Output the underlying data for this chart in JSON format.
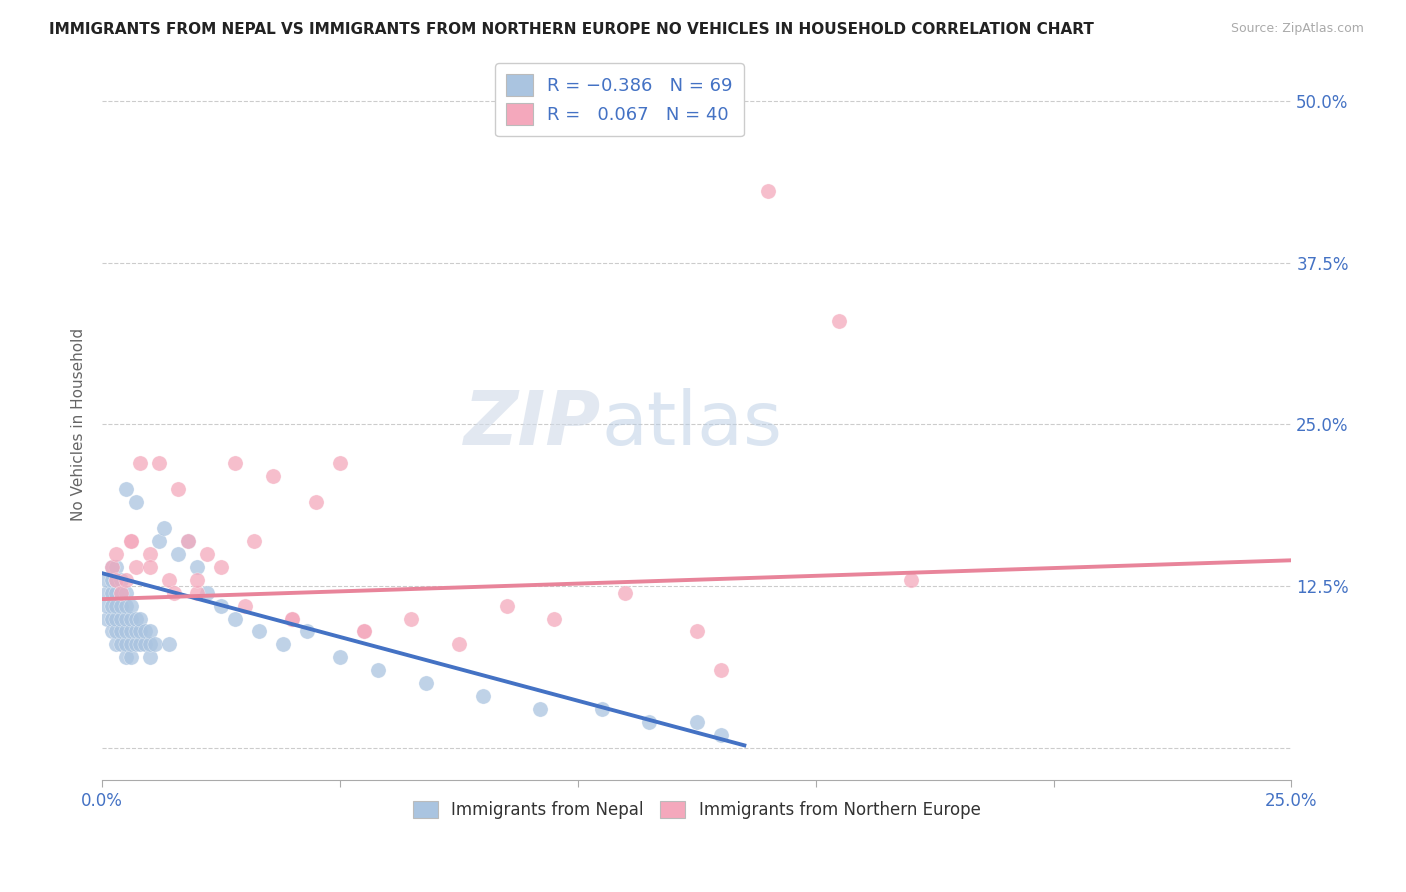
{
  "title": "IMMIGRANTS FROM NEPAL VS IMMIGRANTS FROM NORTHERN EUROPE NO VEHICLES IN HOUSEHOLD CORRELATION CHART",
  "source": "Source: ZipAtlas.com",
  "ylabel": "No Vehicles in Household",
  "xlim": [
    0.0,
    0.25
  ],
  "ylim": [
    -0.025,
    0.525
  ],
  "nepal_R": -0.386,
  "nepal_N": 69,
  "northern_europe_R": 0.067,
  "northern_europe_N": 40,
  "nepal_color": "#aac4e0",
  "northern_color": "#f4a8bc",
  "nepal_line_color": "#4472c4",
  "northern_line_color": "#e8849a",
  "legend_label_1": "Immigrants from Nepal",
  "legend_label_2": "Immigrants from Northern Europe",
  "watermark": "ZIPatlas",
  "nepal_x": [
    0.001,
    0.001,
    0.001,
    0.001,
    0.002,
    0.002,
    0.002,
    0.002,
    0.002,
    0.002,
    0.003,
    0.003,
    0.003,
    0.003,
    0.003,
    0.003,
    0.003,
    0.004,
    0.004,
    0.004,
    0.004,
    0.004,
    0.004,
    0.005,
    0.005,
    0.005,
    0.005,
    0.005,
    0.005,
    0.005,
    0.006,
    0.006,
    0.006,
    0.006,
    0.006,
    0.007,
    0.007,
    0.007,
    0.007,
    0.008,
    0.008,
    0.008,
    0.009,
    0.009,
    0.01,
    0.01,
    0.01,
    0.011,
    0.012,
    0.013,
    0.014,
    0.016,
    0.018,
    0.02,
    0.022,
    0.025,
    0.028,
    0.033,
    0.038,
    0.043,
    0.05,
    0.058,
    0.068,
    0.08,
    0.092,
    0.105,
    0.115,
    0.125,
    0.13
  ],
  "nepal_y": [
    0.1,
    0.11,
    0.12,
    0.13,
    0.09,
    0.1,
    0.11,
    0.12,
    0.13,
    0.14,
    0.08,
    0.09,
    0.1,
    0.11,
    0.12,
    0.13,
    0.14,
    0.08,
    0.09,
    0.1,
    0.11,
    0.12,
    0.13,
    0.07,
    0.08,
    0.09,
    0.1,
    0.11,
    0.12,
    0.2,
    0.07,
    0.08,
    0.09,
    0.1,
    0.11,
    0.08,
    0.09,
    0.1,
    0.19,
    0.08,
    0.09,
    0.1,
    0.08,
    0.09,
    0.07,
    0.08,
    0.09,
    0.08,
    0.16,
    0.17,
    0.08,
    0.15,
    0.16,
    0.14,
    0.12,
    0.11,
    0.1,
    0.09,
    0.08,
    0.09,
    0.07,
    0.06,
    0.05,
    0.04,
    0.03,
    0.03,
    0.02,
    0.02,
    0.01
  ],
  "northern_x": [
    0.002,
    0.003,
    0.004,
    0.005,
    0.006,
    0.007,
    0.008,
    0.01,
    0.012,
    0.014,
    0.016,
    0.018,
    0.02,
    0.022,
    0.025,
    0.028,
    0.032,
    0.036,
    0.04,
    0.045,
    0.05,
    0.055,
    0.065,
    0.075,
    0.085,
    0.095,
    0.11,
    0.125,
    0.14,
    0.155,
    0.17,
    0.003,
    0.006,
    0.01,
    0.015,
    0.02,
    0.03,
    0.04,
    0.055,
    0.13
  ],
  "northern_y": [
    0.14,
    0.13,
    0.12,
    0.13,
    0.16,
    0.14,
    0.22,
    0.15,
    0.22,
    0.13,
    0.2,
    0.16,
    0.12,
    0.15,
    0.14,
    0.22,
    0.16,
    0.21,
    0.1,
    0.19,
    0.22,
    0.09,
    0.1,
    0.08,
    0.11,
    0.1,
    0.12,
    0.09,
    0.43,
    0.33,
    0.13,
    0.15,
    0.16,
    0.14,
    0.12,
    0.13,
    0.11,
    0.1,
    0.09,
    0.06
  ],
  "nepal_line_x": [
    0.0,
    0.135
  ],
  "nepal_line_y_start": 0.135,
  "nepal_line_y_end": 0.002,
  "northern_line_x": [
    0.0,
    0.25
  ],
  "northern_line_y_start": 0.115,
  "northern_line_y_end": 0.145
}
